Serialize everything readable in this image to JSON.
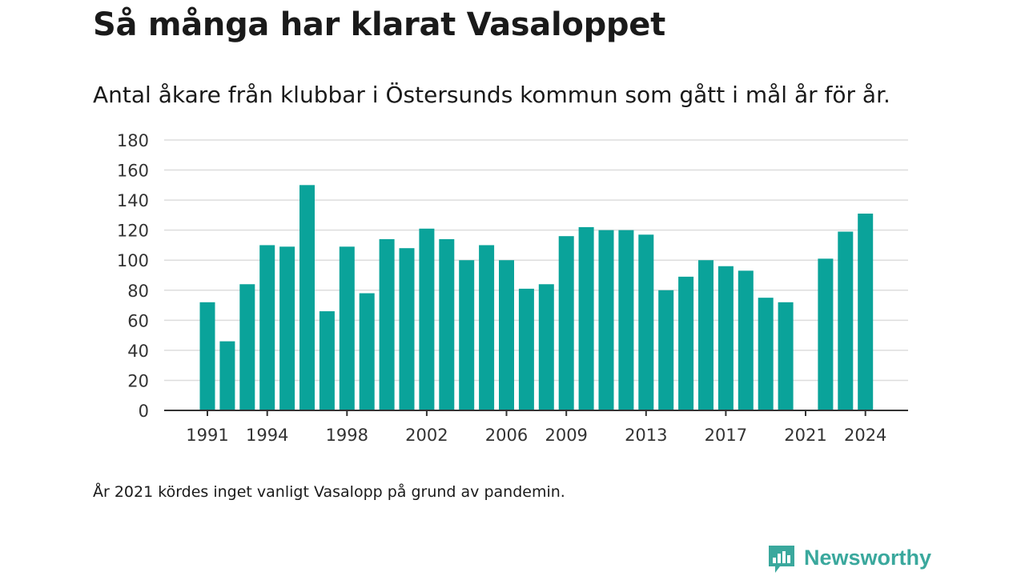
{
  "header": {
    "title": "Så många har klarat Vasaloppet",
    "subtitle": "Antal åkare från klubbar i Östersunds kommun som gått i mål år för år."
  },
  "footnote": "År 2021 kördes inget vanligt Vasalopp på grund av pandemin.",
  "brand": {
    "name": "Newsworthy",
    "icon": "newsworthy-logo-icon",
    "color": "#3aa89d"
  },
  "colors": {
    "bar": "#0aa39a",
    "grid": "#dddddd",
    "axis": "#333333"
  },
  "chart_data": {
    "type": "bar",
    "title": "Så många har klarat Vasaloppet",
    "subtitle": "Antal åkare från klubbar i Östersunds kommun som gått i mål år för år.",
    "xlabel": "",
    "ylabel": "",
    "ylim": [
      0,
      180
    ],
    "yticks": [
      0,
      20,
      40,
      60,
      80,
      100,
      120,
      140,
      160,
      180
    ],
    "xticks": [
      1991,
      1994,
      1998,
      2002,
      2006,
      2009,
      2013,
      2017,
      2021,
      2024
    ],
    "grid": true,
    "legend": "none",
    "categories": [
      1991,
      1992,
      1993,
      1994,
      1995,
      1996,
      1997,
      1998,
      1999,
      2000,
      2001,
      2002,
      2003,
      2004,
      2005,
      2006,
      2007,
      2008,
      2009,
      2010,
      2011,
      2012,
      2013,
      2014,
      2015,
      2016,
      2017,
      2018,
      2019,
      2020,
      2021,
      2022,
      2023,
      2024
    ],
    "values": [
      72,
      46,
      84,
      110,
      109,
      150,
      66,
      109,
      78,
      114,
      108,
      121,
      114,
      100,
      110,
      100,
      81,
      84,
      116,
      122,
      120,
      120,
      117,
      80,
      89,
      100,
      96,
      93,
      75,
      72,
      null,
      101,
      119,
      131
    ]
  }
}
